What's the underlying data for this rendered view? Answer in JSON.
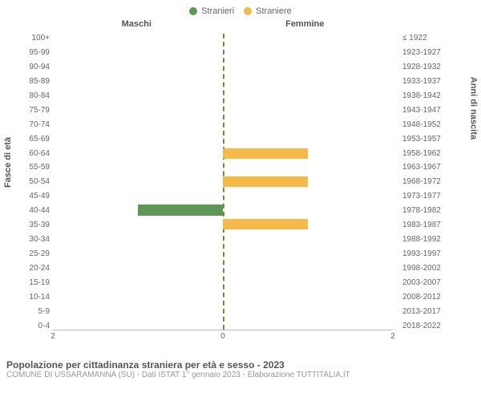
{
  "legend": {
    "male": {
      "label": "Stranieri",
      "color": "#5e9756"
    },
    "female": {
      "label": "Straniere",
      "color": "#f5b945"
    }
  },
  "header": {
    "male_title": "Maschi",
    "female_title": "Femmine"
  },
  "axis": {
    "left_title": "Fasce di età",
    "right_title": "Anni di nascita",
    "xmax": 2,
    "xticks": [
      2,
      0,
      2
    ],
    "center_line_color": "#7a8a3a"
  },
  "chart": {
    "type": "population-pyramid",
    "background_color": "#ffffff",
    "bar_color_male": "#5e9756",
    "bar_color_female": "#f5b945",
    "rows": [
      {
        "age": "100+",
        "birth": "≤ 1922",
        "m": 0,
        "f": 0
      },
      {
        "age": "95-99",
        "birth": "1923-1927",
        "m": 0,
        "f": 0
      },
      {
        "age": "90-94",
        "birth": "1928-1932",
        "m": 0,
        "f": 0
      },
      {
        "age": "85-89",
        "birth": "1933-1937",
        "m": 0,
        "f": 0
      },
      {
        "age": "80-84",
        "birth": "1938-1942",
        "m": 0,
        "f": 0
      },
      {
        "age": "75-79",
        "birth": "1943-1947",
        "m": 0,
        "f": 0
      },
      {
        "age": "70-74",
        "birth": "1948-1952",
        "m": 0,
        "f": 0
      },
      {
        "age": "65-69",
        "birth": "1953-1957",
        "m": 0,
        "f": 0
      },
      {
        "age": "60-64",
        "birth": "1958-1962",
        "m": 0,
        "f": 1
      },
      {
        "age": "55-59",
        "birth": "1963-1967",
        "m": 0,
        "f": 0
      },
      {
        "age": "50-54",
        "birth": "1968-1972",
        "m": 0,
        "f": 1
      },
      {
        "age": "45-49",
        "birth": "1973-1977",
        "m": 0,
        "f": 0
      },
      {
        "age": "40-44",
        "birth": "1978-1982",
        "m": 1,
        "f": 0
      },
      {
        "age": "35-39",
        "birth": "1983-1987",
        "m": 0,
        "f": 1
      },
      {
        "age": "30-34",
        "birth": "1988-1992",
        "m": 0,
        "f": 0
      },
      {
        "age": "25-29",
        "birth": "1993-1997",
        "m": 0,
        "f": 0
      },
      {
        "age": "20-24",
        "birth": "1998-2002",
        "m": 0,
        "f": 0
      },
      {
        "age": "15-19",
        "birth": "2003-2007",
        "m": 0,
        "f": 0
      },
      {
        "age": "10-14",
        "birth": "2008-2012",
        "m": 0,
        "f": 0
      },
      {
        "age": "5-9",
        "birth": "2013-2017",
        "m": 0,
        "f": 0
      },
      {
        "age": "0-4",
        "birth": "2018-2022",
        "m": 0,
        "f": 0
      }
    ]
  },
  "caption": {
    "title": "Popolazione per cittadinanza straniera per età e sesso - 2023",
    "subtitle": "COMUNE DI USSARAMANNA (SU) - Dati ISTAT 1° gennaio 2023 - Elaborazione TUTTITALIA.IT"
  }
}
